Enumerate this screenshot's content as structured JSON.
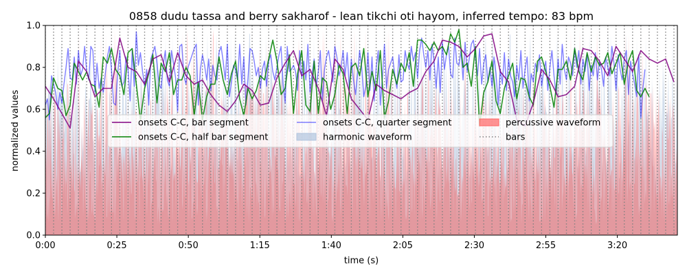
{
  "chart_data": {
    "type": "line",
    "title": "0858 dudu tassa and berry sakharof - lean tikchi oti hayom, inferred tempo: 83 bpm",
    "xlabel": "time (s)",
    "ylabel": "normalized values",
    "xlim": [
      0,
      221
    ],
    "ylim": [
      0,
      1
    ],
    "x_ticks": [
      {
        "value": 0,
        "label": "0:00"
      },
      {
        "value": 25,
        "label": "0:25"
      },
      {
        "value": 50,
        "label": "0:50"
      },
      {
        "value": 75,
        "label": "1:15"
      },
      {
        "value": 100,
        "label": "1:40"
      },
      {
        "value": 125,
        "label": "2:05"
      },
      {
        "value": 150,
        "label": "2:30"
      },
      {
        "value": 175,
        "label": "2:55"
      },
      {
        "value": 200,
        "label": "3:20"
      }
    ],
    "y_ticks": [
      {
        "value": 0.0,
        "label": "0.0"
      },
      {
        "value": 0.2,
        "label": "0.2"
      },
      {
        "value": 0.4,
        "label": "0.4"
      },
      {
        "value": 0.6,
        "label": "0.6"
      },
      {
        "value": 0.8,
        "label": "0.8"
      },
      {
        "value": 1.0,
        "label": "1.0"
      }
    ],
    "bar_period_s": 2.892,
    "legend": {
      "placement": "center",
      "columns": 3,
      "entries": [
        {
          "label": "onsets C-C, bar segment",
          "color": "#800080",
          "style": "line"
        },
        {
          "label": "onsets C-C, half bar segment",
          "color": "#008000",
          "style": "line"
        },
        {
          "label": "onsets C-C, quarter segment",
          "color": "#0000ff",
          "style": "line-light"
        },
        {
          "label": "harmonic waveform",
          "color": "#b0c4de",
          "style": "patch"
        },
        {
          "label": "percussive waveform",
          "color": "#ff6666",
          "style": "patch"
        },
        {
          "label": "bars",
          "color": "#808080",
          "style": "dotted"
        }
      ]
    },
    "series": [
      {
        "name": "onsets C-C, bar segment",
        "color": "#800080",
        "step": 2.892,
        "values": [
          0.71,
          0.65,
          0.58,
          0.51,
          0.83,
          0.78,
          0.66,
          0.7,
          0.7,
          0.94,
          0.8,
          0.78,
          0.72,
          0.84,
          0.86,
          0.73,
          0.87,
          0.76,
          0.72,
          0.74,
          0.67,
          0.62,
          0.59,
          0.64,
          0.72,
          0.69,
          0.62,
          0.63,
          0.75,
          0.82,
          0.88,
          0.76,
          0.79,
          0.7,
          0.57,
          0.84,
          0.79,
          0.65,
          0.6,
          0.55,
          0.72,
          0.69,
          0.67,
          0.65,
          0.68,
          0.7,
          0.78,
          0.83,
          0.93,
          0.92,
          0.9,
          0.85,
          0.89,
          0.95,
          0.96,
          0.78,
          0.73,
          0.55,
          0.52,
          0.63,
          0.79,
          0.74,
          0.66,
          0.67,
          0.71,
          0.89,
          0.88,
          0.83,
          0.76,
          0.9,
          0.84,
          0.78,
          0.88,
          0.84,
          0.82,
          0.84,
          0.73
        ]
      },
      {
        "name": "onsets C-C, half bar segment",
        "color": "#008000",
        "step": 1.446,
        "values": [
          0.56,
          0.58,
          0.75,
          0.7,
          0.69,
          0.57,
          0.62,
          0.82,
          0.78,
          0.74,
          0.78,
          0.72,
          0.71,
          0.61,
          0.85,
          0.82,
          0.89,
          0.79,
          0.76,
          0.67,
          0.87,
          0.89,
          0.72,
          0.55,
          0.7,
          0.77,
          0.86,
          0.63,
          0.82,
          0.78,
          0.87,
          0.67,
          0.74,
          0.74,
          0.8,
          0.76,
          0.57,
          0.73,
          0.55,
          0.66,
          0.72,
          0.72,
          0.85,
          0.74,
          0.67,
          0.77,
          0.83,
          0.65,
          0.57,
          0.7,
          0.65,
          0.69,
          0.76,
          0.74,
          0.84,
          0.93,
          0.83,
          0.67,
          0.7,
          0.86,
          0.58,
          0.77,
          0.88,
          0.62,
          0.59,
          0.83,
          0.58,
          0.75,
          0.73,
          0.6,
          0.67,
          0.81,
          0.77,
          0.58,
          0.8,
          0.82,
          0.76,
          0.89,
          0.66,
          0.78,
          0.69,
          0.88,
          0.56,
          0.64,
          0.79,
          0.72,
          0.82,
          0.78,
          0.87,
          0.71,
          0.93,
          0.93,
          0.91,
          0.88,
          0.92,
          0.88,
          0.9,
          0.86,
          0.96,
          0.92,
          0.98,
          0.8,
          0.82,
          0.71,
          0.9,
          0.52,
          0.68,
          0.73,
          0.83,
          0.64,
          0.58,
          0.7,
          0.76,
          0.82,
          0.65,
          0.75,
          0.74,
          0.66,
          0.62,
          0.83,
          0.85,
          0.78,
          0.71,
          0.61,
          0.79,
          0.79,
          0.83,
          0.74,
          0.89,
          0.78,
          0.74,
          0.87,
          0.78,
          0.85,
          0.81,
          0.82,
          0.87,
          0.77,
          0.82,
          0.87,
          0.72,
          0.83,
          0.88,
          0.69,
          0.66,
          0.7,
          0.66
        ]
      },
      {
        "name": "onsets C-C, quarter segment",
        "color": "#0000ff",
        "step": 0.723,
        "values": [
          0.62,
          0.65,
          0.55,
          0.76,
          0.72,
          0.68,
          0.6,
          0.68,
          0.63,
          0.72,
          0.8,
          0.89,
          0.75,
          0.74,
          0.85,
          0.72,
          0.88,
          0.76,
          0.79,
          0.9,
          0.78,
          0.74,
          0.9,
          0.88,
          0.68,
          0.82,
          0.7,
          0.75,
          0.68,
          0.77,
          0.85,
          0.9,
          0.79,
          0.63,
          0.62,
          0.77,
          0.88,
          0.71,
          0.73,
          0.85,
          0.79,
          0.64,
          0.88,
          0.71,
          0.97,
          0.81,
          0.87,
          0.78,
          0.71,
          0.79,
          0.62,
          0.84,
          0.87,
          0.9,
          0.82,
          0.72,
          0.7,
          0.81,
          0.88,
          0.74,
          0.71,
          0.88,
          0.82,
          0.75,
          0.59,
          0.9,
          0.91,
          0.76,
          0.72,
          0.8,
          0.83,
          0.86,
          0.89,
          0.91,
          0.62,
          0.79,
          0.86,
          0.81,
          0.74,
          0.84,
          0.69,
          0.81,
          0.76,
          0.74,
          0.87,
          0.9,
          0.83,
          0.74,
          0.91,
          0.66,
          0.73,
          0.81,
          0.79,
          0.74,
          0.91,
          0.72,
          0.85,
          0.62,
          0.75,
          0.89,
          0.88,
          0.83,
          0.76,
          0.8,
          0.7,
          0.79,
          0.83,
          0.71,
          0.83,
          0.86,
          0.78,
          0.74,
          0.8,
          0.86,
          0.9,
          0.72,
          0.63,
          0.9,
          0.78,
          0.79,
          0.81,
          0.78,
          0.69,
          0.88,
          0.75,
          0.83,
          0.74,
          0.91,
          0.68,
          0.77,
          0.84,
          0.71,
          0.78,
          0.88,
          0.64,
          0.79,
          0.85,
          0.88,
          0.81,
          0.73,
          0.9,
          0.85,
          0.76,
          0.8,
          0.88,
          0.76,
          0.87,
          0.7,
          0.84,
          0.74,
          0.67,
          0.77,
          0.88,
          0.8,
          0.66,
          0.71,
          0.87,
          0.69,
          0.85,
          0.64,
          0.8,
          0.88,
          0.62,
          0.75,
          0.91,
          0.7,
          0.79,
          0.82,
          0.85,
          0.76,
          0.7,
          0.86,
          0.73,
          0.74,
          0.88,
          0.82,
          0.79,
          0.9,
          0.83,
          0.87,
          0.75,
          0.88,
          0.94,
          0.86,
          0.8,
          0.88,
          0.74,
          0.91,
          0.83,
          0.7,
          0.85,
          0.68,
          0.92,
          0.79,
          0.86,
          0.9,
          0.77,
          0.75,
          0.94,
          0.82,
          0.81,
          0.88,
          0.74,
          0.92,
          0.78,
          0.84,
          0.91,
          0.93,
          0.85,
          0.76,
          0.89,
          0.72,
          0.82,
          0.86,
          0.73,
          0.8,
          0.71,
          0.85,
          0.77,
          0.62,
          0.79,
          0.72,
          0.87,
          0.69,
          0.84,
          0.76,
          0.73,
          0.66,
          0.81,
          0.74,
          0.88,
          0.7,
          0.79,
          0.85,
          0.64,
          0.77,
          0.73,
          0.82,
          0.78,
          0.86,
          0.71,
          0.78,
          0.83,
          0.69,
          0.8,
          0.88,
          0.76,
          0.67,
          0.84,
          0.72,
          0.91,
          0.79,
          0.74,
          0.85,
          0.82,
          0.76,
          0.89,
          0.8,
          0.88,
          0.72,
          0.84,
          0.78,
          0.86,
          0.69,
          0.81,
          0.76,
          0.87,
          0.74,
          0.83,
          0.79,
          0.71,
          0.85,
          0.8,
          0.76,
          0.9,
          0.82,
          0.69,
          0.86,
          0.79,
          0.74,
          0.84,
          0.88,
          0.67,
          0.83,
          0.77,
          0.72,
          0.66,
          0.86,
          0.56,
          0.7,
          0.79
        ]
      }
    ]
  }
}
